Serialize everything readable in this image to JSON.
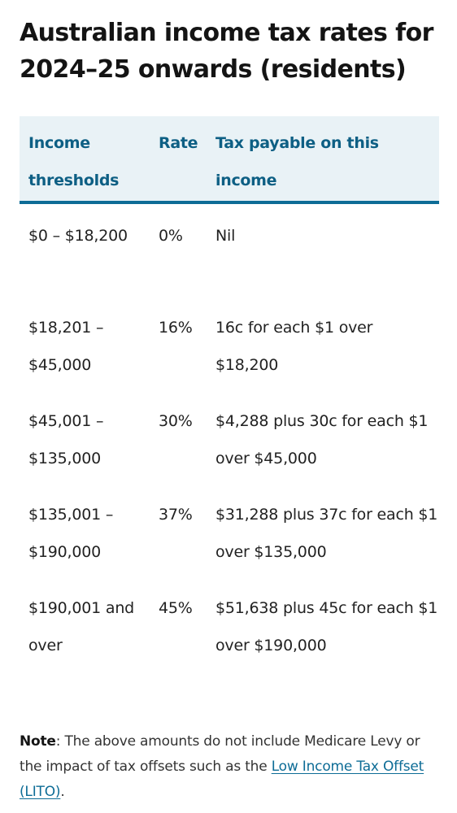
{
  "title": "Australian income tax rates for 2024–25 onwards (residents)",
  "table": {
    "headers": {
      "threshold": "Income thresholds",
      "rate": "Rate",
      "tax": "Tax payable on this income"
    },
    "rows": [
      {
        "threshold": "$0 – $18,200",
        "rate": "0%",
        "tax": "Nil"
      },
      {
        "threshold": "$18,201 – $45,000",
        "rate": "16%",
        "tax": "16c for each $1 over $18,200"
      },
      {
        "threshold": "$45,001 – $135,000",
        "rate": "30%",
        "tax": "$4,288 plus 30c for each $1 over $45,000"
      },
      {
        "threshold": "$135,001 – $190,000",
        "rate": "37%",
        "tax": "$31,288 plus 37c for each $1 over $135,000"
      },
      {
        "threshold": "$190,001 and over",
        "rate": "45%",
        "tax": "$51,638 plus 45c for each $1 over $190,000"
      }
    ]
  },
  "note": {
    "label": "Note",
    "text": ": The above amounts do not include Medicare Levy or the impact of tax offsets such as the ",
    "link_text": "Low Income Tax Offset (LITO)",
    "end": "."
  },
  "colors": {
    "header_bg": "#e9f2f6",
    "header_text": "#0d5f84",
    "accent_rule": "#0d6c96",
    "link": "#0d6c96"
  }
}
